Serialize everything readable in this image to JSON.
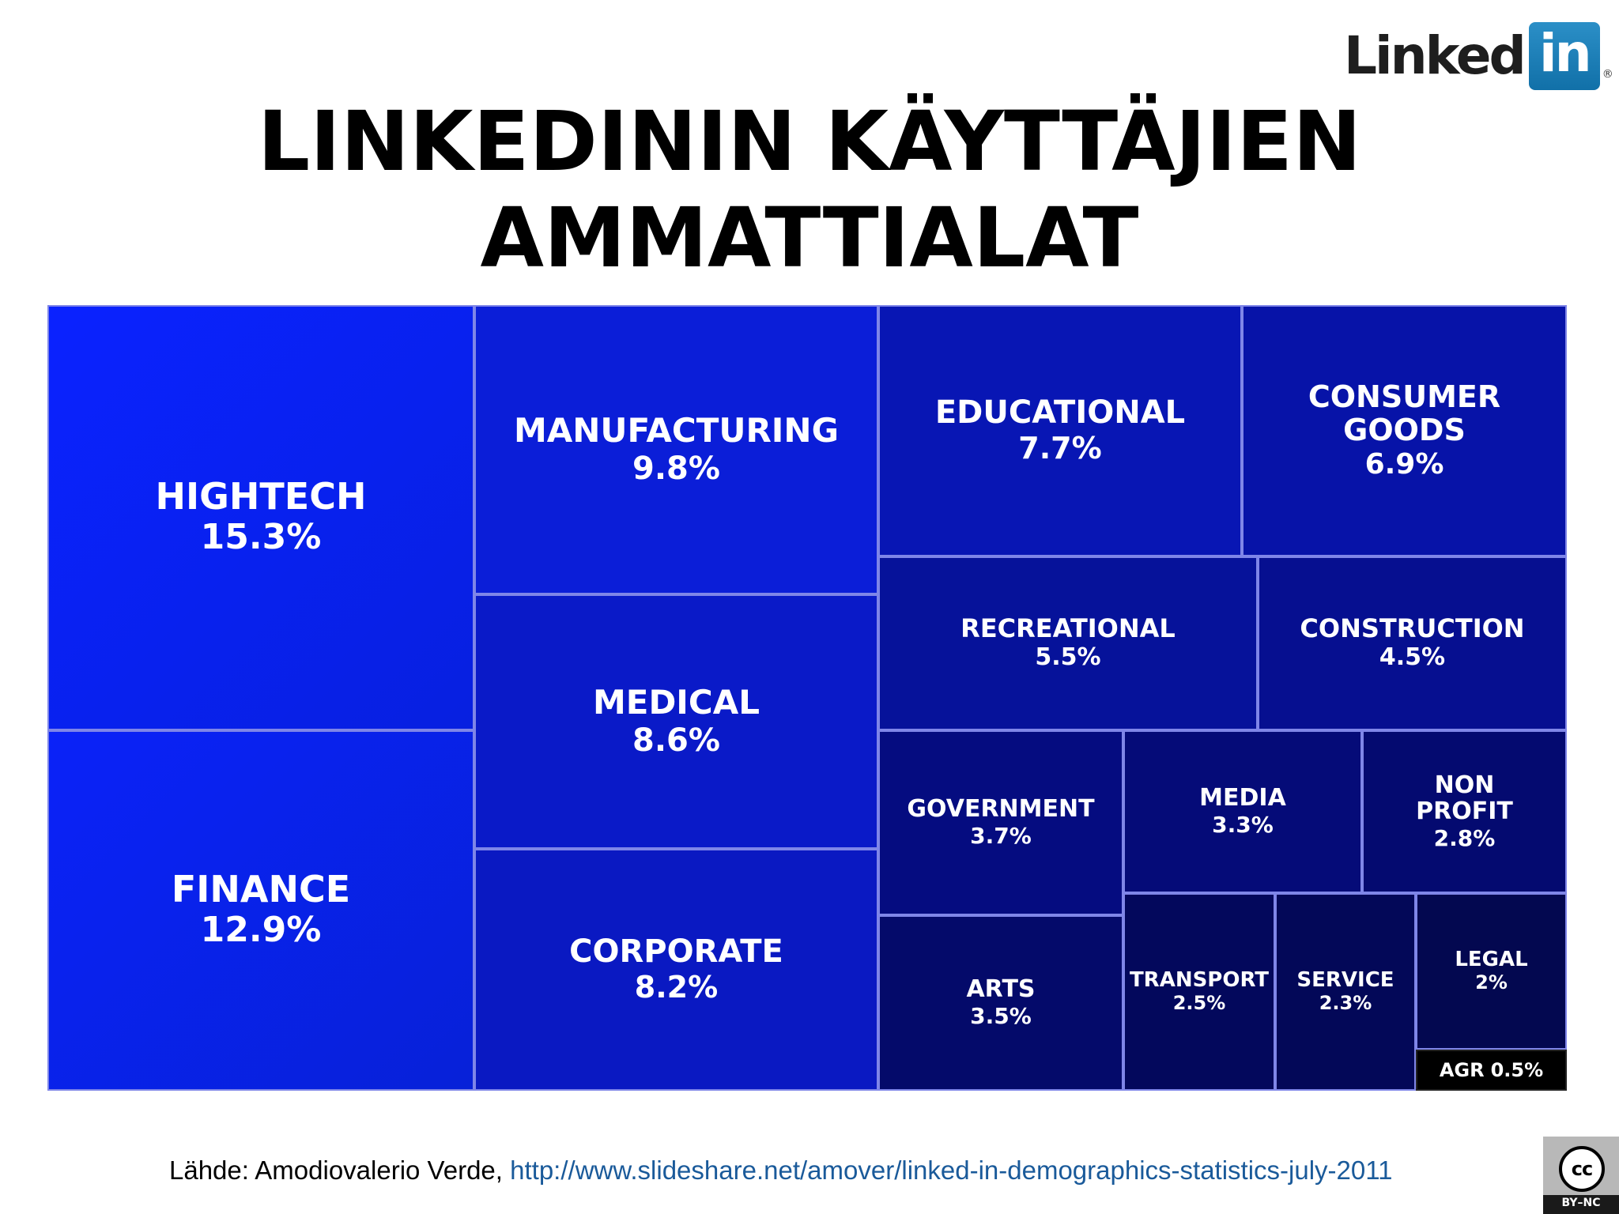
{
  "logo": {
    "word": "Linked",
    "box": "in",
    "reg": "®"
  },
  "title": {
    "line1": "LINKEDININ KÄYTTÄJIEN",
    "line2": "AMMATTIALAT"
  },
  "chart_data": {
    "type": "treemap",
    "title": "LINKEDININ KÄYTTÄJIEN AMMATTIALAT",
    "unit": "%",
    "items": [
      {
        "name": "HIGHTECH",
        "value": 15.3,
        "label": "15.3%"
      },
      {
        "name": "FINANCE",
        "value": 12.9,
        "label": "12.9%"
      },
      {
        "name": "MANUFACTURING",
        "value": 9.8,
        "label": "9.8%"
      },
      {
        "name": "MEDICAL",
        "value": 8.6,
        "label": "8.6%"
      },
      {
        "name": "CORPORATE",
        "value": 8.2,
        "label": "8.2%"
      },
      {
        "name": "EDUCATIONAL",
        "value": 7.7,
        "label": "7.7%"
      },
      {
        "name": "CONSUMER\nGOODS",
        "value": 6.9,
        "label": "6.9%"
      },
      {
        "name": "RECREATIONAL",
        "value": 5.5,
        "label": "5.5%"
      },
      {
        "name": "CONSTRUCTION",
        "value": 4.5,
        "label": "4.5%"
      },
      {
        "name": "GOVERNMENT",
        "value": 3.7,
        "label": "3.7%"
      },
      {
        "name": "MEDIA",
        "value": 3.3,
        "label": "3.3%"
      },
      {
        "name": "NON\nPROFIT",
        "value": 2.8,
        "label": "2.8%"
      },
      {
        "name": "ARTS",
        "value": 3.5,
        "label": "3.5%"
      },
      {
        "name": "TRANSPORT",
        "value": 2.5,
        "label": "2.5%"
      },
      {
        "name": "SERVICE",
        "value": 2.3,
        "label": "2.3%"
      },
      {
        "name": "LEGAL",
        "value": 2,
        "label": "2%"
      },
      {
        "name": "AGR",
        "value": 0.5,
        "label": "0.5%"
      }
    ]
  },
  "source": {
    "prefix": "Lähde: Amodiovalerio Verde, ",
    "link": "http://www.slideshare.net/amover/linked-in-demographics-statistics-july-2011"
  },
  "license": {
    "symbol": "cc",
    "text": "BY–NC"
  }
}
